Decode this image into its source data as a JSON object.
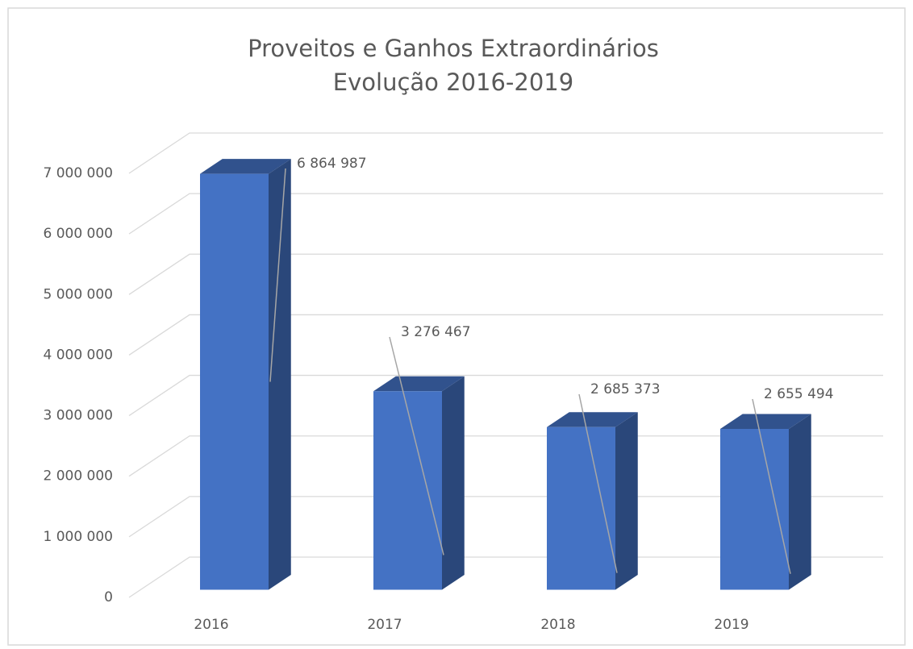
{
  "chart_data": {
    "type": "bar3d",
    "title": "Proveitos e Ganhos Extraordinários",
    "subtitle": "Evolução 2016-2019",
    "categories": [
      "2016",
      "2017",
      "2018",
      "2019"
    ],
    "values": [
      6864987,
      3276467,
      2685373,
      2655494
    ],
    "value_labels": [
      "6 864 987",
      "3 276 467",
      "2 685 373",
      "2 655 494"
    ],
    "color": "#4472c4",
    "ylim": [
      0,
      7000000
    ],
    "yticks": [
      {
        "value": 0,
        "label": "0"
      },
      {
        "value": 1000000,
        "label": "1 000 000"
      },
      {
        "value": 2000000,
        "label": "2 000 000"
      },
      {
        "value": 3000000,
        "label": "3 000 000"
      },
      {
        "value": 4000000,
        "label": "4 000 000"
      },
      {
        "value": 5000000,
        "label": "5 000 000"
      },
      {
        "value": 6000000,
        "label": "6 000 000"
      },
      {
        "value": 7000000,
        "label": "7 000 000"
      }
    ],
    "grid": true
  }
}
